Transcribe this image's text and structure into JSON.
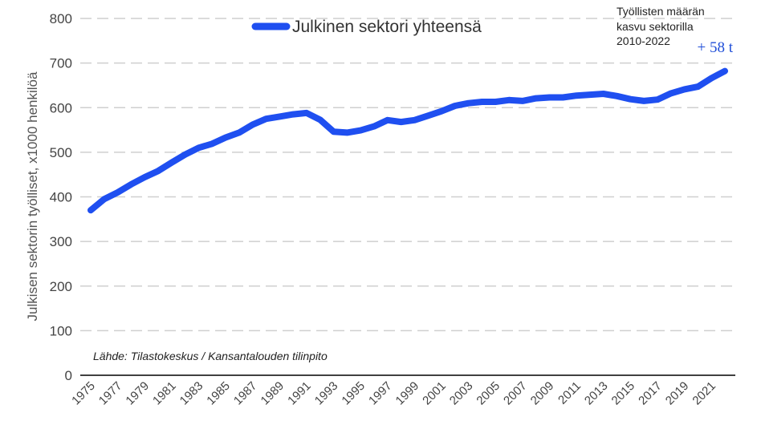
{
  "chart_data": {
    "type": "line",
    "ylabel": "Julkisen sektorin työlliset, x1000 henkilöä",
    "ylim": [
      0,
      800
    ],
    "yticks": [
      0,
      100,
      200,
      300,
      400,
      500,
      600,
      700,
      800
    ],
    "grid": "horizontal dashed",
    "legend_placement": "top-center",
    "x_tick_labels": [
      "1975",
      "1977",
      "1979",
      "1981",
      "1983",
      "1985",
      "1987",
      "1989",
      "1991",
      "1993",
      "1995",
      "1997",
      "1999",
      "2001",
      "2003",
      "2005",
      "2007",
      "2009",
      "2011",
      "2013",
      "2015",
      "2017",
      "2019",
      "2021"
    ],
    "series": [
      {
        "name": "Julkinen sektori yhteensä",
        "color": "#1f4ff0",
        "x": [
          1975,
          1976,
          1977,
          1978,
          1979,
          1980,
          1981,
          1982,
          1983,
          1984,
          1985,
          1986,
          1987,
          1988,
          1989,
          1990,
          1991,
          1992,
          1993,
          1994,
          1995,
          1996,
          1997,
          1998,
          1999,
          2000,
          2001,
          2002,
          2003,
          2004,
          2005,
          2006,
          2007,
          2008,
          2009,
          2010,
          2011,
          2012,
          2013,
          2014,
          2015,
          2016,
          2017,
          2018,
          2019,
          2020,
          2021,
          2022
        ],
        "values": [
          370,
          395,
          410,
          428,
          444,
          458,
          477,
          495,
          510,
          519,
          533,
          544,
          562,
          575,
          580,
          585,
          588,
          573,
          546,
          544,
          549,
          558,
          572,
          568,
          572,
          582,
          592,
          604,
          610,
          613,
          613,
          617,
          615,
          621,
          623,
          623,
          627,
          629,
          631,
          626,
          619,
          615,
          618,
          632,
          641,
          647,
          666,
          682
        ]
      }
    ],
    "annotations": {
      "source": "Lähde: Tilastokeskus / Kansantalouden tilinpito",
      "growth_title_lines": [
        "Työllisten määrän",
        "kasvu sektorilla",
        "2010-2022"
      ],
      "growth_value": "+ 58 t"
    }
  }
}
